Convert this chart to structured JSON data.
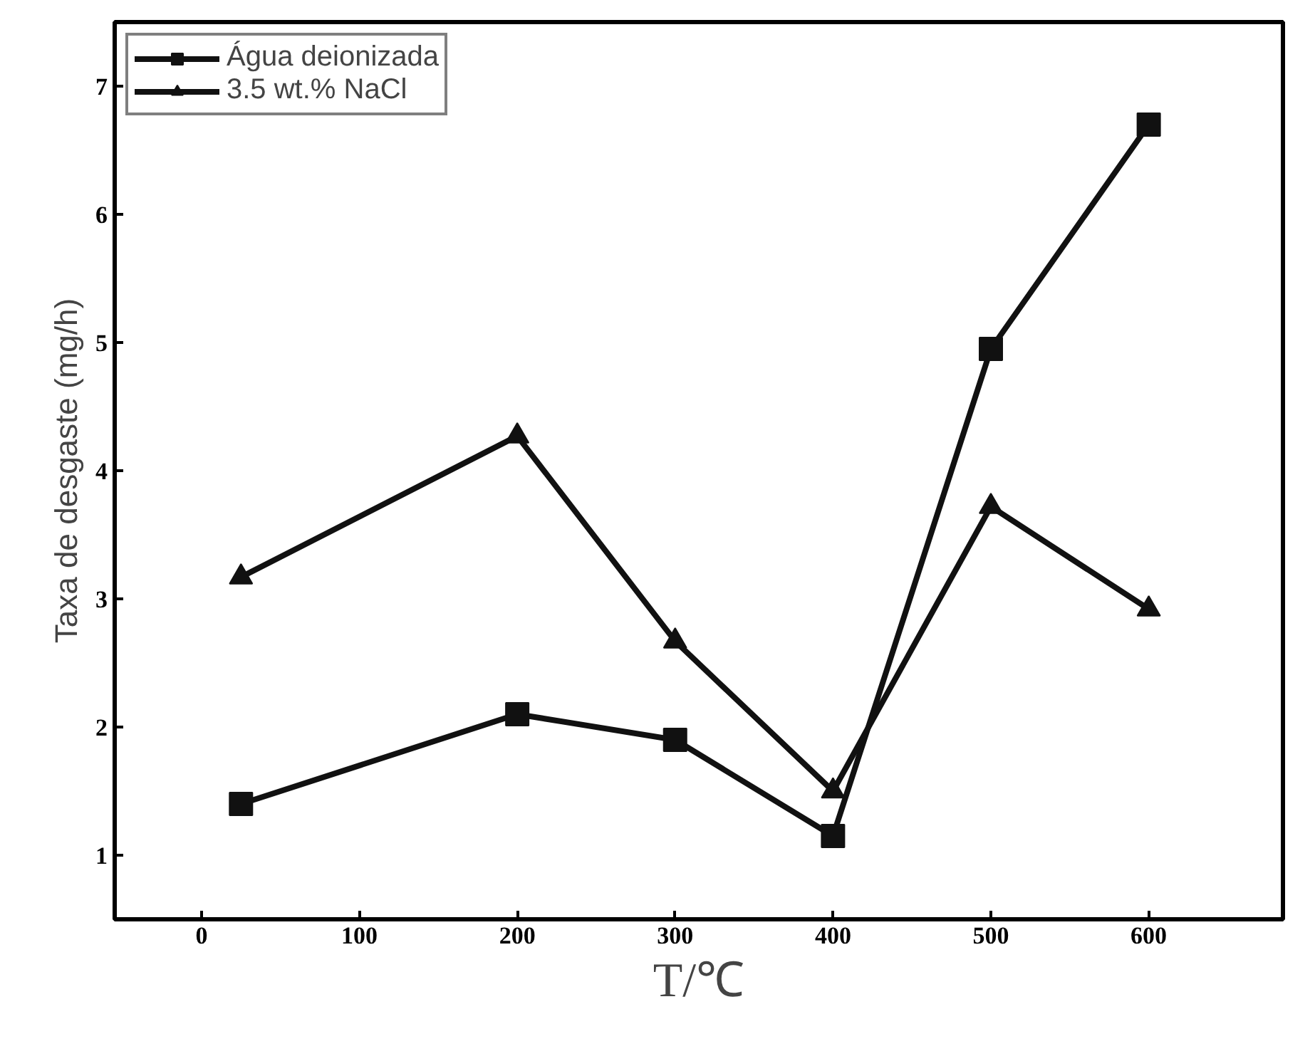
{
  "chart_data": {
    "type": "line",
    "xlabel": "T/℃",
    "ylabel": "Taxa de desgaste (mg/h)",
    "xlim": [
      -55,
      685
    ],
    "ylim": [
      0.5,
      7.5
    ],
    "xticks": [
      0,
      100,
      200,
      300,
      400,
      500,
      600
    ],
    "yticks": [
      1,
      2,
      3,
      4,
      5,
      6,
      7
    ],
    "grid": false,
    "legend": "top left",
    "line_style": "solid",
    "series": [
      {
        "name": "Água deionizada",
        "color": "#111111",
        "marker": "square",
        "x": [
          25,
          200,
          300,
          400,
          500,
          600
        ],
        "values": [
          1.4,
          2.1,
          1.9,
          1.15,
          4.95,
          6.7
        ]
      },
      {
        "name": "3.5 wt.% NaCl",
        "color": "#111111",
        "marker": "triangle",
        "x": [
          25,
          200,
          300,
          400,
          500,
          600
        ],
        "values": [
          3.17,
          4.27,
          2.67,
          1.5,
          3.72,
          2.92
        ]
      }
    ]
  }
}
